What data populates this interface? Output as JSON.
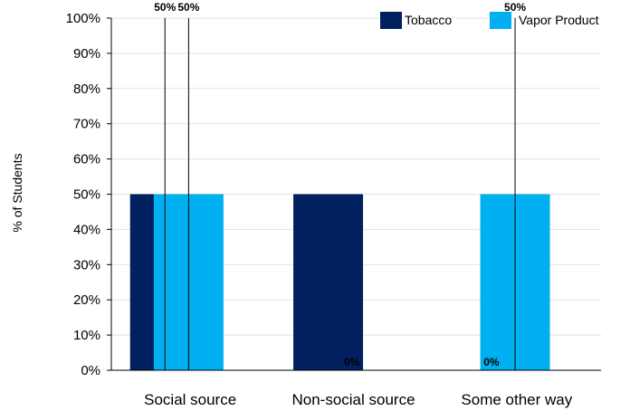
{
  "chart_data": {
    "type": "bar",
    "categories": [
      "Social source",
      "Non-social source",
      "Some other way"
    ],
    "series": [
      {
        "name": "Tobacco",
        "color": "#002060",
        "values": [
          50,
          50,
          0
        ],
        "labels": [
          "50%",
          "",
          "0%"
        ]
      },
      {
        "name": "Vapor Product",
        "color": "#00b0f0",
        "values": [
          50,
          0,
          50
        ],
        "labels": [
          "50%",
          "0%",
          "50%"
        ]
      }
    ],
    "error_bars": [
      [
        [
          0,
          100
        ],
        null,
        null
      ],
      [
        [
          0,
          100
        ],
        null,
        [
          0,
          100
        ]
      ]
    ],
    "ylabel": "% of Students",
    "ylim": [
      0,
      100
    ],
    "yticks": [
      "0%",
      "10%",
      "20%",
      "30%",
      "40%",
      "50%",
      "60%",
      "70%",
      "80%",
      "90%",
      "100%"
    ],
    "grid": true,
    "legend_position": "top-right"
  }
}
